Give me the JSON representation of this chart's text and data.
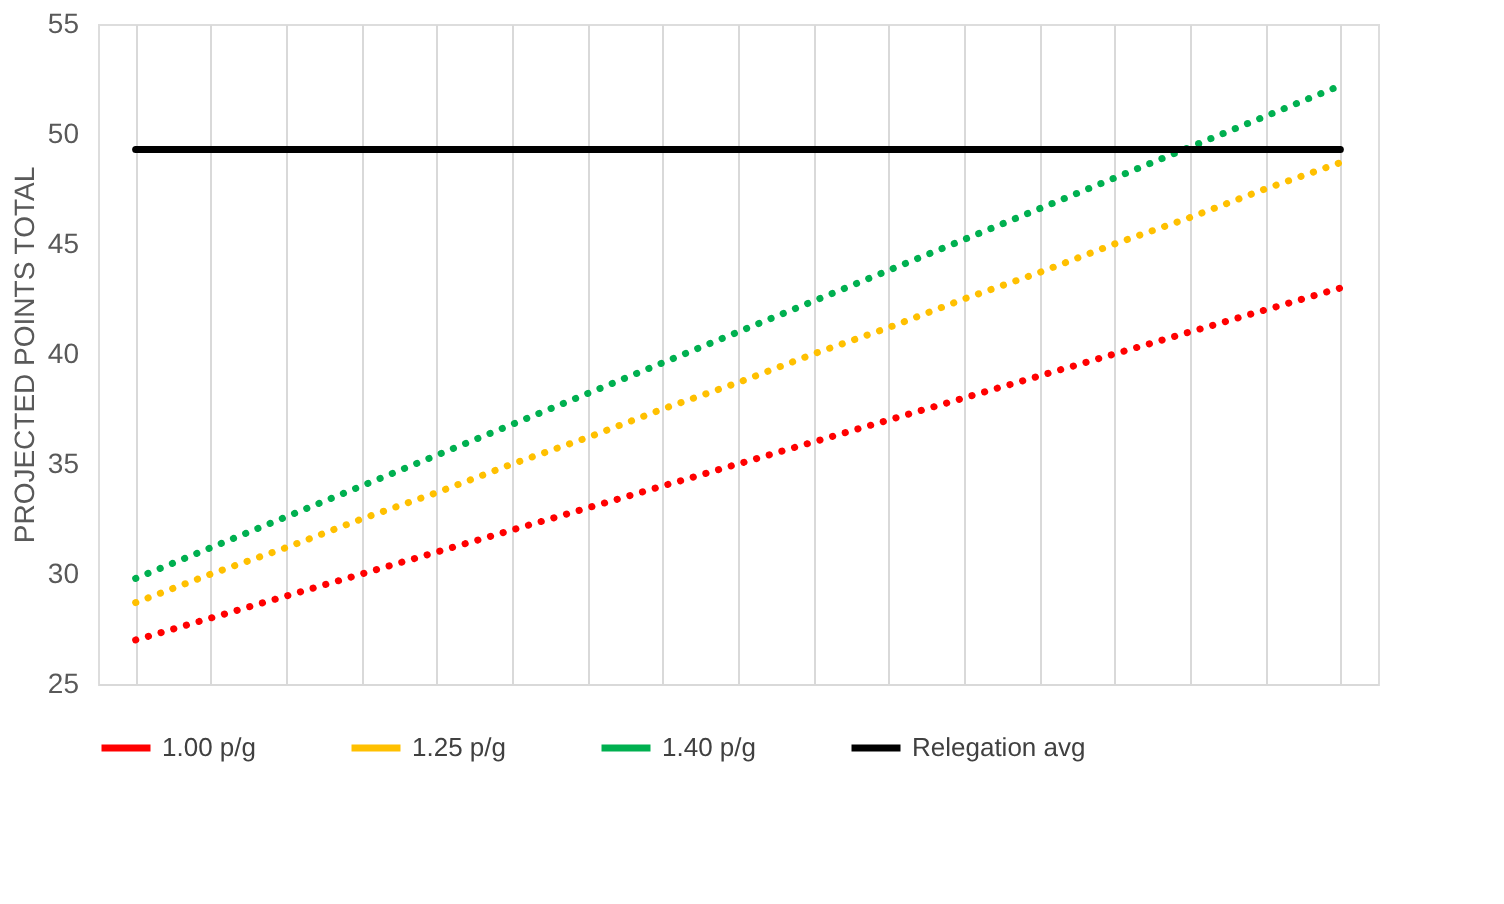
{
  "chart_data": {
    "type": "line",
    "ylabel": "PROJECTED POINTS TOTAL",
    "categories": [
      null,
      null,
      null,
      null,
      null,
      null,
      null,
      null,
      null,
      null,
      null,
      null,
      null,
      null,
      null,
      null,
      null
    ],
    "series": [
      {
        "name": "1.00 p/g",
        "color": "#ff0000",
        "line_style": "dotted",
        "values": [
          27,
          28,
          29,
          30,
          31,
          32,
          33,
          34,
          35,
          36,
          37,
          38,
          39,
          40,
          41,
          42,
          43
        ]
      },
      {
        "name": "1.25 p/g",
        "color": "#ffc000",
        "line_style": "dotted",
        "values": [
          28.7,
          30.0,
          31.2,
          32.5,
          33.7,
          35.0,
          36.2,
          37.5,
          38.7,
          40.0,
          41.2,
          42.5,
          43.7,
          45.0,
          46.2,
          47.5,
          48.7
        ]
      },
      {
        "name": "1.40 p/g",
        "color": "#00b050",
        "line_style": "dotted",
        "values": [
          29.8,
          31.2,
          32.6,
          34.0,
          35.4,
          36.8,
          38.2,
          39.6,
          41.0,
          42.4,
          43.8,
          45.2,
          46.6,
          48.0,
          49.4,
          50.8,
          52.2
        ]
      },
      {
        "name": "Relegation avg",
        "color": "#000000",
        "line_style": "solid",
        "values": [
          49.3,
          49.3,
          49.3,
          49.3,
          49.3,
          49.3,
          49.3,
          49.3,
          49.3,
          49.3,
          49.3,
          49.3,
          49.3,
          49.3,
          49.3,
          49.3,
          49.3
        ]
      }
    ],
    "ylim": [
      25,
      55
    ],
    "yticks": [
      25,
      30,
      35,
      40,
      45,
      50,
      55
    ],
    "grid": "x",
    "legend": "bottom",
    "tick_labels": "y",
    "marker": "none"
  }
}
